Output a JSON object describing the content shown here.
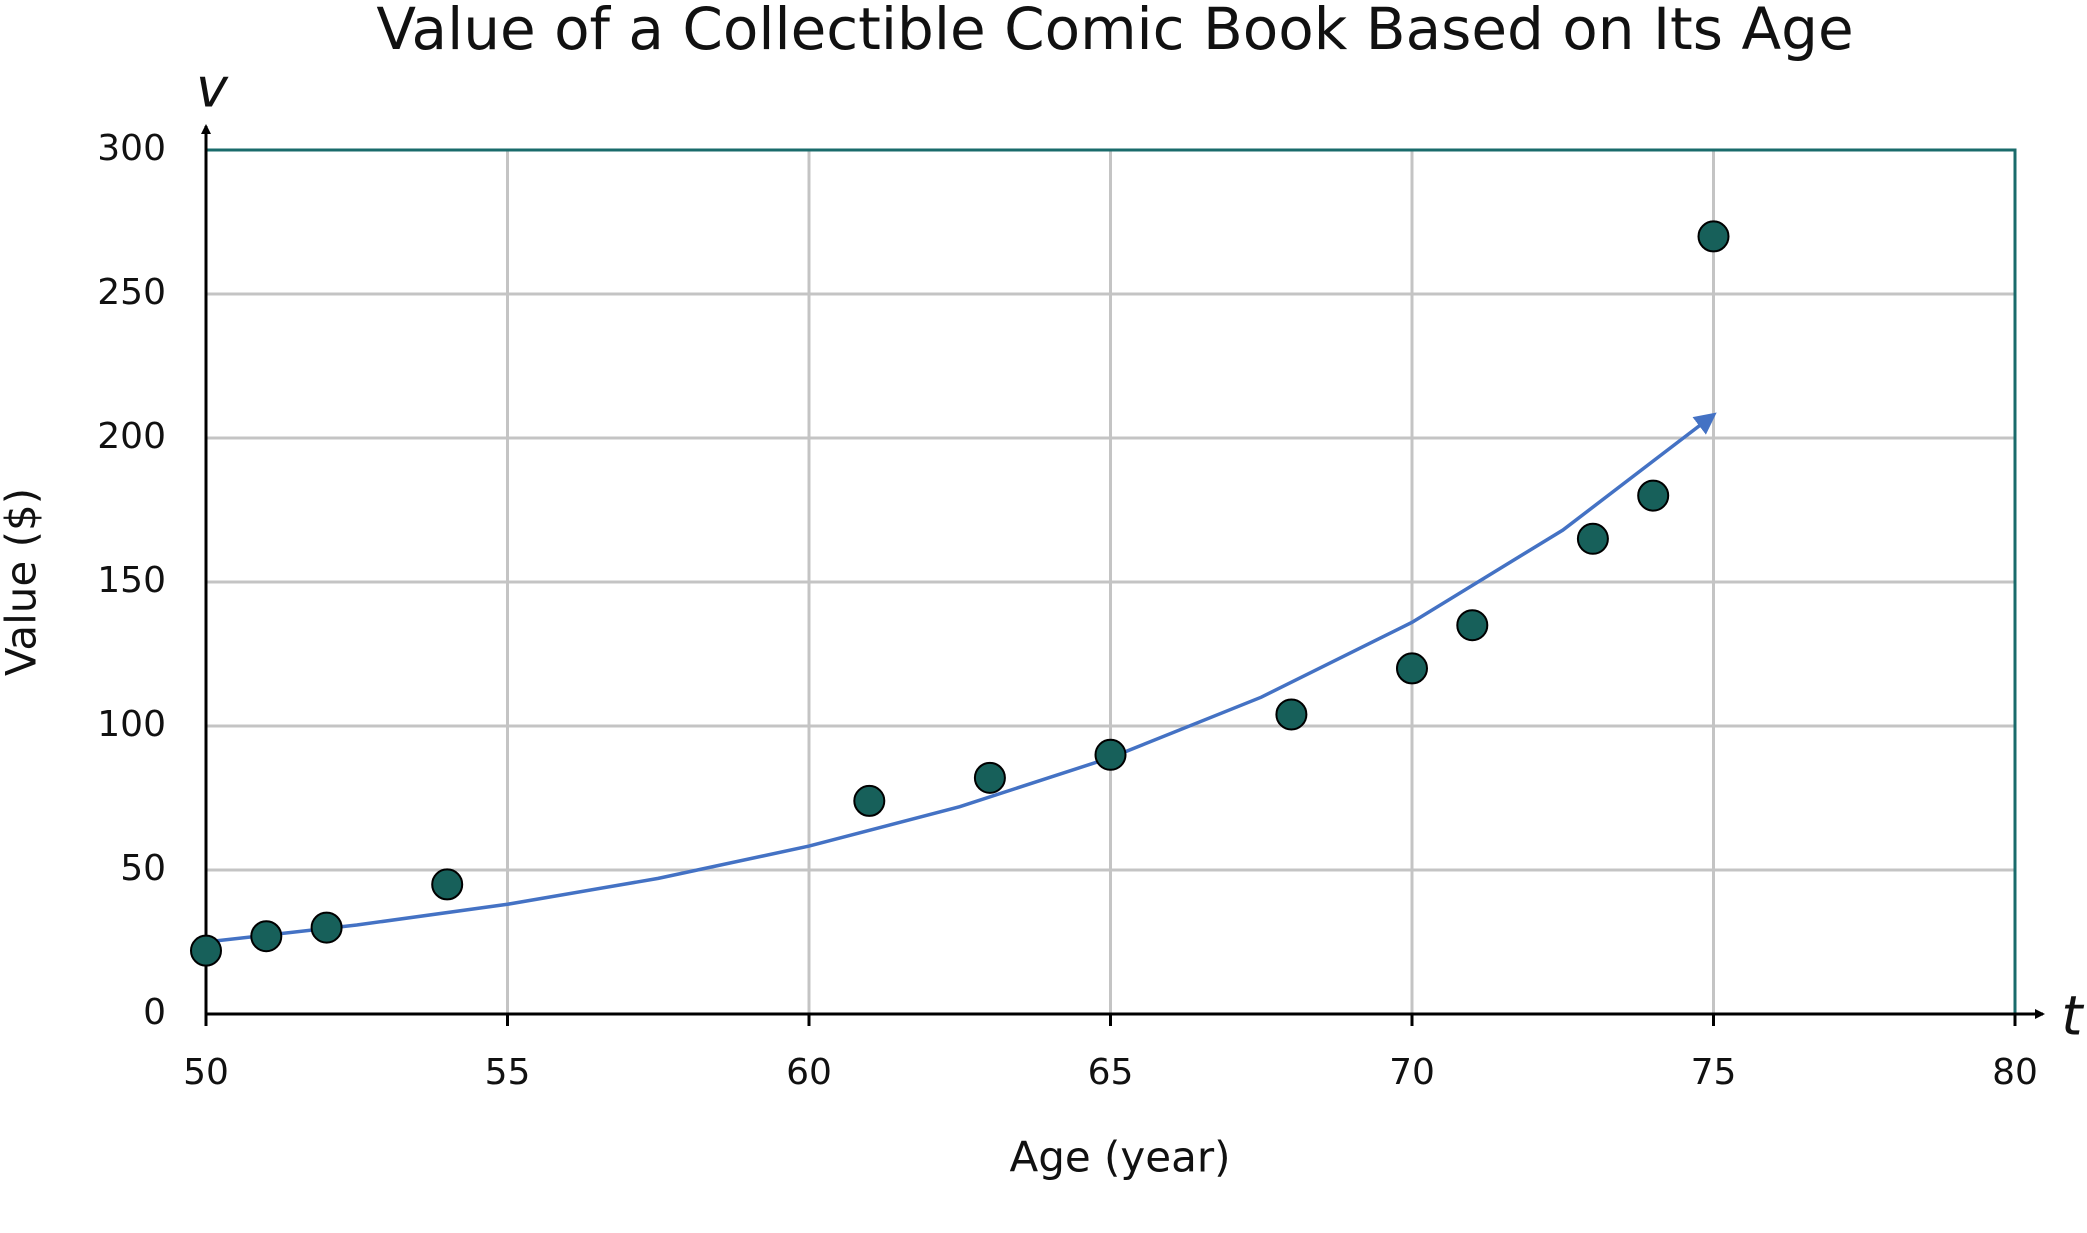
{
  "chart_data": {
    "type": "scatter",
    "title": "Value of a Collectible Comic Book Based on Its Age",
    "x_label": "Age (year)",
    "y_label": "Value ($)",
    "x_var": "t",
    "y_var": "v",
    "series": [
      {
        "type": "scatter",
        "color": "#17605a",
        "x": [
          50,
          51,
          52,
          54,
          61,
          63,
          65,
          68,
          70,
          71,
          73,
          74,
          75
        ],
        "values": [
          22,
          27,
          30,
          45,
          74,
          82,
          90,
          104,
          120,
          135,
          165,
          180,
          270
        ]
      },
      {
        "type": "line",
        "color": "#4472c4",
        "x": [
          50,
          52.5,
          55,
          57.5,
          60,
          62.5,
          65,
          67.5,
          70,
          72.5,
          75
        ],
        "values": [
          25,
          30.9,
          38.1,
          47.1,
          58.3,
          72,
          89,
          110,
          136,
          168,
          208
        ]
      }
    ],
    "xlim": [
      50,
      80
    ],
    "ylim": [
      0,
      300
    ],
    "xticks": [
      50,
      55,
      60,
      65,
      70,
      75,
      80
    ],
    "yticks": [
      0,
      50,
      100,
      150,
      200,
      250,
      300
    ],
    "grid": true,
    "border_color": "#1a6b6b"
  }
}
